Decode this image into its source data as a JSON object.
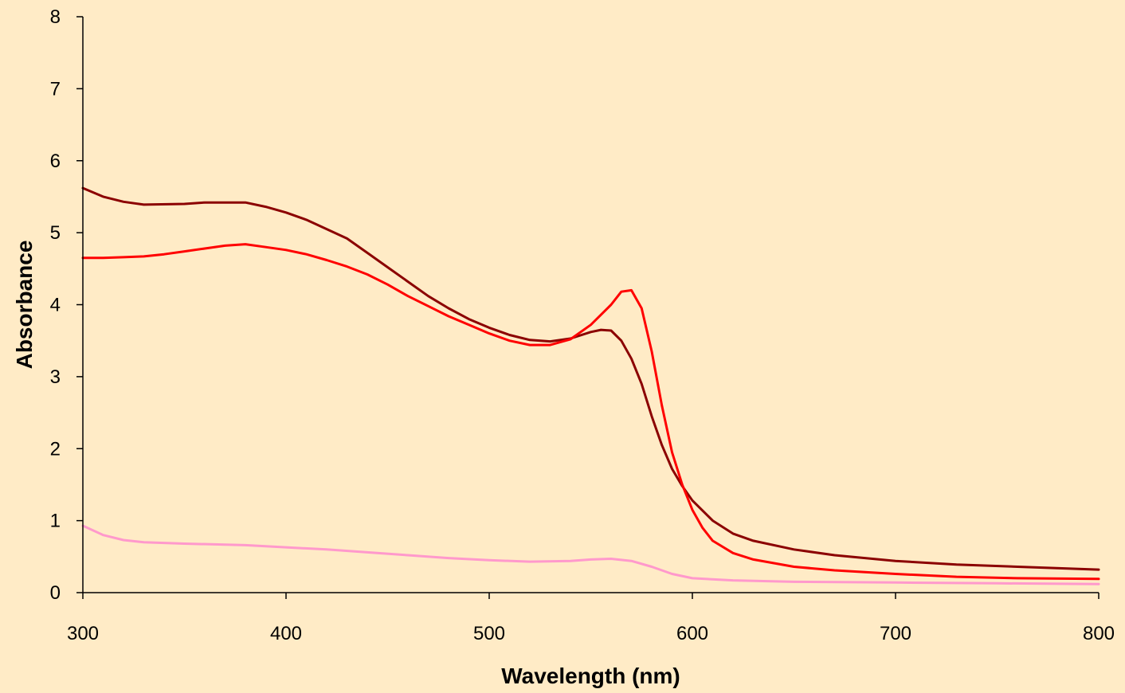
{
  "chart_data": {
    "type": "line",
    "title": "",
    "xlabel": "Wavelength (nm)",
    "ylabel": "Absorbance",
    "xlim": [
      300,
      800
    ],
    "ylim": [
      0,
      8
    ],
    "xticks": [
      300,
      400,
      500,
      600,
      700,
      800
    ],
    "yticks": [
      0,
      1,
      2,
      3,
      4,
      5,
      6,
      7,
      8
    ],
    "grid": false,
    "legend": "none",
    "background": "#FFEBC6",
    "series": [
      {
        "color": "#8B0000",
        "points": [
          [
            300,
            5.62
          ],
          [
            310,
            5.5
          ],
          [
            320,
            5.43
          ],
          [
            330,
            5.39
          ],
          [
            350,
            5.4
          ],
          [
            360,
            5.42
          ],
          [
            380,
            5.42
          ],
          [
            390,
            5.36
          ],
          [
            400,
            5.28
          ],
          [
            410,
            5.18
          ],
          [
            420,
            5.05
          ],
          [
            430,
            4.92
          ],
          [
            440,
            4.72
          ],
          [
            450,
            4.52
          ],
          [
            460,
            4.32
          ],
          [
            470,
            4.12
          ],
          [
            480,
            3.95
          ],
          [
            490,
            3.8
          ],
          [
            500,
            3.68
          ],
          [
            510,
            3.58
          ],
          [
            520,
            3.51
          ],
          [
            530,
            3.49
          ],
          [
            540,
            3.53
          ],
          [
            550,
            3.62
          ],
          [
            555,
            3.65
          ],
          [
            560,
            3.64
          ],
          [
            565,
            3.5
          ],
          [
            570,
            3.25
          ],
          [
            575,
            2.9
          ],
          [
            580,
            2.45
          ],
          [
            585,
            2.05
          ],
          [
            590,
            1.72
          ],
          [
            595,
            1.48
          ],
          [
            600,
            1.28
          ],
          [
            610,
            1.0
          ],
          [
            620,
            0.82
          ],
          [
            630,
            0.72
          ],
          [
            650,
            0.6
          ],
          [
            670,
            0.52
          ],
          [
            700,
            0.44
          ],
          [
            730,
            0.39
          ],
          [
            760,
            0.36
          ],
          [
            800,
            0.32
          ]
        ]
      },
      {
        "color": "#FF0000",
        "points": [
          [
            300,
            4.65
          ],
          [
            310,
            4.65
          ],
          [
            320,
            4.66
          ],
          [
            330,
            4.67
          ],
          [
            340,
            4.7
          ],
          [
            350,
            4.74
          ],
          [
            360,
            4.78
          ],
          [
            370,
            4.82
          ],
          [
            380,
            4.84
          ],
          [
            390,
            4.8
          ],
          [
            400,
            4.76
          ],
          [
            410,
            4.7
          ],
          [
            420,
            4.62
          ],
          [
            430,
            4.53
          ],
          [
            440,
            4.42
          ],
          [
            450,
            4.28
          ],
          [
            460,
            4.12
          ],
          [
            470,
            3.98
          ],
          [
            480,
            3.84
          ],
          [
            490,
            3.72
          ],
          [
            500,
            3.6
          ],
          [
            510,
            3.5
          ],
          [
            520,
            3.44
          ],
          [
            530,
            3.44
          ],
          [
            540,
            3.52
          ],
          [
            550,
            3.72
          ],
          [
            560,
            4.0
          ],
          [
            565,
            4.18
          ],
          [
            570,
            4.2
          ],
          [
            575,
            3.95
          ],
          [
            580,
            3.35
          ],
          [
            585,
            2.6
          ],
          [
            590,
            1.95
          ],
          [
            595,
            1.5
          ],
          [
            600,
            1.15
          ],
          [
            605,
            0.9
          ],
          [
            610,
            0.72
          ],
          [
            620,
            0.55
          ],
          [
            630,
            0.46
          ],
          [
            650,
            0.36
          ],
          [
            670,
            0.31
          ],
          [
            700,
            0.26
          ],
          [
            730,
            0.22
          ],
          [
            760,
            0.2
          ],
          [
            800,
            0.19
          ]
        ]
      },
      {
        "color": "#FF99CC",
        "points": [
          [
            300,
            0.93
          ],
          [
            310,
            0.8
          ],
          [
            320,
            0.73
          ],
          [
            330,
            0.7
          ],
          [
            350,
            0.68
          ],
          [
            380,
            0.66
          ],
          [
            400,
            0.63
          ],
          [
            420,
            0.6
          ],
          [
            440,
            0.56
          ],
          [
            460,
            0.52
          ],
          [
            480,
            0.48
          ],
          [
            500,
            0.45
          ],
          [
            520,
            0.43
          ],
          [
            540,
            0.44
          ],
          [
            550,
            0.46
          ],
          [
            560,
            0.47
          ],
          [
            570,
            0.44
          ],
          [
            580,
            0.36
          ],
          [
            590,
            0.26
          ],
          [
            600,
            0.2
          ],
          [
            620,
            0.17
          ],
          [
            650,
            0.15
          ],
          [
            700,
            0.14
          ],
          [
            750,
            0.13
          ],
          [
            800,
            0.12
          ]
        ]
      }
    ]
  }
}
